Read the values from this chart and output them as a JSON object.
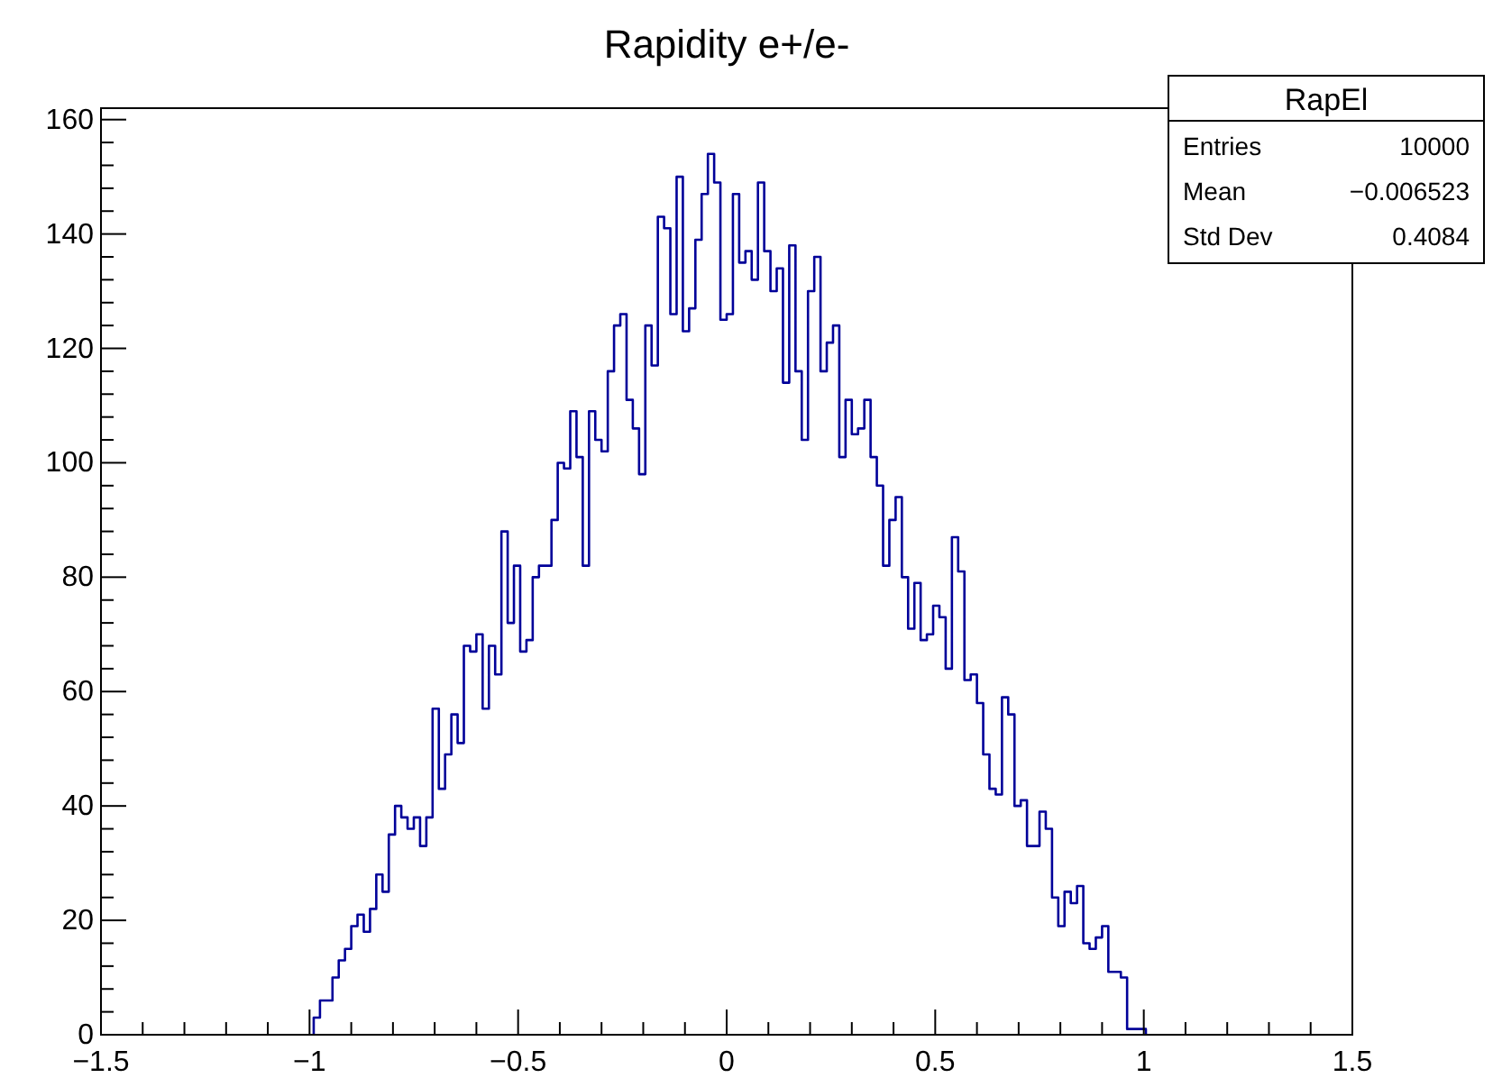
{
  "chart_data": {
    "type": "histogram",
    "title": "Rapidity e+/e-",
    "bins": [
      -0.99,
      -0.975,
      -0.96,
      -0.945,
      -0.93,
      -0.915,
      -0.9,
      -0.885,
      -0.87,
      -0.855,
      -0.84,
      -0.825,
      -0.81,
      -0.795,
      -0.78,
      -0.765,
      -0.75,
      -0.735,
      -0.72,
      -0.705,
      -0.69,
      -0.675,
      -0.66,
      -0.645,
      -0.63,
      -0.615,
      -0.6,
      -0.585,
      -0.57,
      -0.555,
      -0.54,
      -0.525,
      -0.51,
      -0.495,
      -0.48,
      -0.465,
      -0.45,
      -0.435,
      -0.42,
      -0.405,
      -0.39,
      -0.375,
      -0.36,
      -0.345,
      -0.33,
      -0.315,
      -0.3,
      -0.285,
      -0.27,
      -0.255,
      -0.24,
      -0.225,
      -0.21,
      -0.195,
      -0.18,
      -0.165,
      -0.15,
      -0.135,
      -0.12,
      -0.105,
      -0.09,
      -0.075,
      -0.06,
      -0.045,
      -0.03,
      -0.015,
      0,
      0.015,
      0.03,
      0.045,
      0.06,
      0.075,
      0.09,
      0.105,
      0.12,
      0.135,
      0.15,
      0.165,
      0.18,
      0.195,
      0.21,
      0.225,
      0.24,
      0.255,
      0.27,
      0.285,
      0.3,
      0.315,
      0.33,
      0.345,
      0.36,
      0.375,
      0.39,
      0.405,
      0.42,
      0.435,
      0.45,
      0.465,
      0.48,
      0.495,
      0.51,
      0.525,
      0.54,
      0.555,
      0.57,
      0.585,
      0.6,
      0.615,
      0.63,
      0.645,
      0.66,
      0.675,
      0.69,
      0.705,
      0.72,
      0.735,
      0.75,
      0.765,
      0.78,
      0.795,
      0.81,
      0.825,
      0.84,
      0.855,
      0.87,
      0.885,
      0.9,
      0.915,
      0.93,
      0.945,
      0.96,
      0.975,
      0.99,
      1.005
    ],
    "values": [
      3,
      6,
      6,
      10,
      13,
      15,
      19,
      21,
      18,
      22,
      28,
      25,
      35,
      40,
      38,
      36,
      38,
      33,
      38,
      57,
      43,
      49,
      56,
      51,
      68,
      67,
      70,
      57,
      68,
      63,
      88,
      72,
      82,
      67,
      69,
      80,
      82,
      82,
      90,
      100,
      99,
      109,
      101,
      82,
      109,
      104,
      102,
      116,
      124,
      126,
      111,
      106,
      98,
      124,
      117,
      143,
      141,
      126,
      150,
      123,
      127,
      139,
      147,
      154,
      149,
      125,
      126,
      147,
      135,
      137,
      132,
      149,
      137,
      130,
      134,
      114,
      138,
      116,
      104,
      130,
      136,
      116,
      121,
      124,
      101,
      111,
      105,
      106,
      111,
      101,
      96,
      82,
      90,
      94,
      80,
      71,
      79,
      69,
      70,
      75,
      73,
      64,
      87,
      81,
      62,
      63,
      58,
      49,
      43,
      42,
      59,
      56,
      40,
      41,
      33,
      33,
      39,
      36,
      24,
      19,
      25,
      23,
      26,
      16,
      15,
      17,
      19,
      11,
      11,
      10,
      1,
      1,
      1
    ],
    "color": "#000099",
    "xlim": [
      -1.5,
      1.5
    ],
    "xticks": [
      {
        "value": -1.5,
        "label": "−1.5"
      },
      {
        "value": -1.4,
        "label": null
      },
      {
        "value": -1.3,
        "label": null
      },
      {
        "value": -1.2,
        "label": null
      },
      {
        "value": -1.1,
        "label": null
      },
      {
        "value": -1,
        "label": "−1"
      },
      {
        "value": -0.9,
        "label": null
      },
      {
        "value": -0.8,
        "label": null
      },
      {
        "value": -0.7,
        "label": null
      },
      {
        "value": -0.6,
        "label": null
      },
      {
        "value": -0.5,
        "label": "−0.5"
      },
      {
        "value": -0.4,
        "label": null
      },
      {
        "value": -0.3,
        "label": null
      },
      {
        "value": -0.2,
        "label": null
      },
      {
        "value": -0.1,
        "label": null
      },
      0,
      {
        "value": 0.1,
        "label": null
      },
      {
        "value": 0.2,
        "label": null
      },
      {
        "value": 0.3,
        "label": null
      },
      {
        "value": 0.4,
        "label": null
      },
      0.5,
      {
        "value": 0.6,
        "label": null
      },
      {
        "value": 0.7,
        "label": null
      },
      {
        "value": 0.8,
        "label": null
      },
      {
        "value": 0.9,
        "label": null
      },
      1,
      {
        "value": 1.1,
        "label": null
      },
      {
        "value": 1.2,
        "label": null
      },
      {
        "value": 1.3,
        "label": null
      },
      {
        "value": 1.4,
        "label": null
      },
      1.5
    ],
    "ylim": [
      0,
      162
    ],
    "yticks": [
      0,
      {
        "value": 4,
        "label": null
      },
      {
        "value": 8,
        "label": null
      },
      {
        "value": 12,
        "label": null
      },
      {
        "value": 16,
        "label": null
      },
      20,
      {
        "value": 24,
        "label": null
      },
      {
        "value": 28,
        "label": null
      },
      {
        "value": 32,
        "label": null
      },
      {
        "value": 36,
        "label": null
      },
      40,
      {
        "value": 44,
        "label": null
      },
      {
        "value": 48,
        "label": null
      },
      {
        "value": 52,
        "label": null
      },
      {
        "value": 56,
        "label": null
      },
      60,
      {
        "value": 64,
        "label": null
      },
      {
        "value": 68,
        "label": null
      },
      {
        "value": 72,
        "label": null
      },
      {
        "value": 76,
        "label": null
      },
      80,
      {
        "value": 84,
        "label": null
      },
      {
        "value": 88,
        "label": null
      },
      {
        "value": 92,
        "label": null
      },
      {
        "value": 96,
        "label": null
      },
      100,
      {
        "value": 104,
        "label": null
      },
      {
        "value": 108,
        "label": null
      },
      {
        "value": 112,
        "label": null
      },
      {
        "value": 116,
        "label": null
      },
      120,
      {
        "value": 124,
        "label": null
      },
      {
        "value": 128,
        "label": null
      },
      {
        "value": 132,
        "label": null
      },
      {
        "value": 136,
        "label": null
      },
      140,
      {
        "value": 144,
        "label": null
      },
      {
        "value": 148,
        "label": null
      },
      {
        "value": 152,
        "label": null
      },
      {
        "value": 156,
        "label": null
      },
      160
    ],
    "grid": false,
    "annotations": [
      "RapEl",
      "Entries",
      "10000",
      "Mean",
      "−0.006523",
      "Std Dev",
      "0.4084"
    ]
  }
}
